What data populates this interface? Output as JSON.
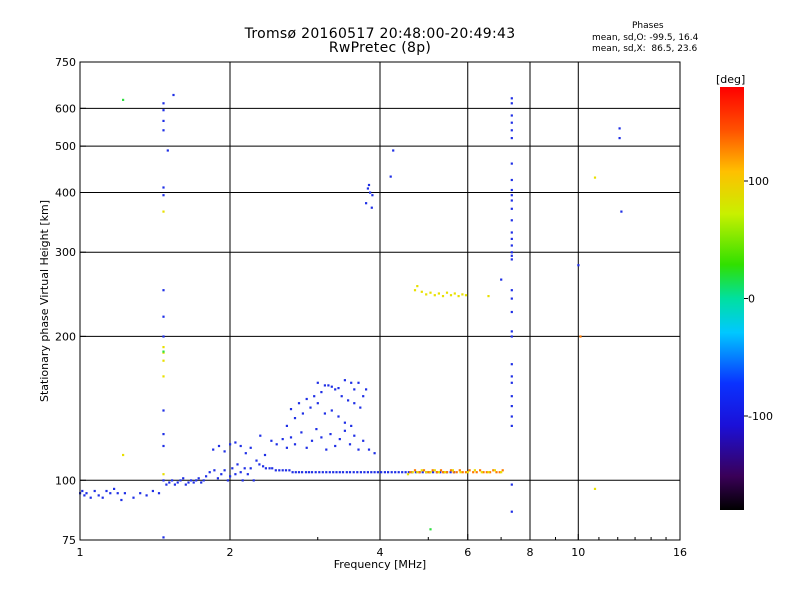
{
  "chart_data": {
    "type": "scatter",
    "title": "Tromsø 20160517 20:48:00-20:49:43",
    "subtitle": "RwPretec (8p)",
    "xlabel": "Frequency [MHz]",
    "ylabel": "Stationary phase Virtual Height [km]",
    "x_scale": "log",
    "y_scale": "log",
    "xlim": [
      1,
      16
    ],
    "ylim": [
      75,
      750
    ],
    "x_ticks": [
      1,
      2,
      4,
      6,
      8,
      10,
      16
    ],
    "y_ticks": [
      75,
      100,
      200,
      300,
      400,
      500,
      600,
      750
    ],
    "grid": true,
    "phase_stats": {
      "heading": "Phases",
      "o_line": "mean, sd,O: -99.5, 16.4",
      "x_line": "mean, sd,X:  86.5, 23.6"
    },
    "colorbar": {
      "label": "[deg]",
      "ticks": [
        100,
        0,
        -100
      ],
      "range": [
        -180,
        180
      ]
    },
    "series": [
      {
        "points": [
          [
            1.0,
            94
          ],
          [
            1.01,
            95
          ],
          [
            1.02,
            93
          ],
          [
            1.03,
            94
          ],
          [
            1.05,
            92
          ],
          [
            1.07,
            95
          ],
          [
            1.09,
            93
          ],
          [
            1.11,
            92
          ],
          [
            1.13,
            95
          ],
          [
            1.15,
            94
          ],
          [
            1.17,
            96
          ],
          [
            1.19,
            94
          ],
          [
            1.21,
            91
          ],
          [
            1.23,
            94
          ],
          [
            1.28,
            92
          ],
          [
            1.32,
            94
          ],
          [
            1.36,
            93
          ],
          [
            1.4,
            95
          ],
          [
            1.44,
            94
          ],
          [
            1.47,
            100
          ],
          [
            1.49,
            98
          ],
          [
            1.51,
            99
          ],
          [
            1.53,
            100
          ],
          [
            1.55,
            98
          ],
          [
            1.57,
            99
          ],
          [
            1.59,
            100
          ],
          [
            1.61,
            101
          ],
          [
            1.63,
            98
          ],
          [
            1.65,
            99
          ],
          [
            1.67,
            100
          ],
          [
            1.69,
            99
          ],
          [
            1.71,
            100
          ],
          [
            1.73,
            101
          ],
          [
            1.75,
            99
          ],
          [
            1.77,
            100
          ],
          [
            1.79,
            102
          ],
          [
            1.82,
            104
          ],
          [
            1.86,
            105
          ],
          [
            1.89,
            101
          ],
          [
            1.92,
            103
          ],
          [
            1.95,
            105
          ],
          [
            1.98,
            100
          ],
          [
            2.0,
            102
          ],
          [
            2.02,
            106
          ],
          [
            2.05,
            103
          ],
          [
            2.07,
            108
          ],
          [
            2.1,
            104
          ],
          [
            2.12,
            100
          ],
          [
            2.14,
            106
          ],
          [
            2.17,
            103
          ],
          [
            2.2,
            106
          ],
          [
            2.23,
            100
          ],
          [
            2.26,
            110
          ],
          [
            2.29,
            108
          ],
          [
            2.33,
            107
          ],
          [
            2.36,
            106
          ],
          [
            2.4,
            106
          ],
          [
            2.43,
            106
          ],
          [
            2.47,
            105
          ],
          [
            2.51,
            105
          ],
          [
            2.55,
            105
          ],
          [
            2.59,
            105
          ],
          [
            2.63,
            105
          ],
          [
            2.67,
            104
          ],
          [
            2.71,
            104
          ],
          [
            2.75,
            104
          ],
          [
            2.79,
            104
          ],
          [
            2.84,
            104
          ],
          [
            2.88,
            104
          ],
          [
            2.92,
            104
          ],
          [
            2.97,
            104
          ],
          [
            3.02,
            104
          ],
          [
            3.07,
            104
          ],
          [
            3.12,
            104
          ],
          [
            3.17,
            104
          ],
          [
            3.22,
            104
          ],
          [
            3.27,
            104
          ],
          [
            3.32,
            104
          ],
          [
            3.37,
            104
          ],
          [
            3.43,
            104
          ],
          [
            3.48,
            104
          ],
          [
            3.54,
            104
          ],
          [
            3.6,
            104
          ],
          [
            3.66,
            104
          ],
          [
            3.72,
            104
          ],
          [
            3.78,
            104
          ],
          [
            3.84,
            104
          ],
          [
            3.9,
            104
          ],
          [
            3.96,
            104
          ],
          [
            4.02,
            104
          ],
          [
            4.09,
            104
          ],
          [
            4.15,
            104
          ],
          [
            4.22,
            104
          ],
          [
            4.29,
            104
          ],
          [
            4.36,
            104
          ],
          [
            4.43,
            104
          ],
          [
            4.5,
            104
          ],
          [
            4.57,
            104
          ],
          [
            4.64,
            104
          ],
          [
            4.72,
            104
          ],
          [
            4.8,
            104
          ],
          [
            4.87,
            104
          ],
          [
            4.95,
            104
          ],
          [
            5.03,
            104
          ],
          [
            5.11,
            104
          ],
          [
            5.2,
            104
          ],
          [
            5.28,
            104
          ],
          [
            5.37,
            104
          ],
          [
            5.45,
            104
          ],
          [
            5.54,
            104
          ],
          [
            5.63,
            104
          ],
          [
            1.85,
            116
          ],
          [
            1.9,
            118
          ],
          [
            1.95,
            115
          ],
          [
            2.0,
            119
          ],
          [
            2.05,
            120
          ],
          [
            2.1,
            118
          ],
          [
            2.15,
            114
          ],
          [
            2.2,
            117
          ],
          [
            2.3,
            124
          ],
          [
            2.35,
            113
          ],
          [
            2.42,
            121
          ],
          [
            2.48,
            119
          ],
          [
            2.55,
            122
          ],
          [
            2.6,
            117
          ],
          [
            2.65,
            123
          ],
          [
            2.7,
            119
          ],
          [
            2.78,
            126
          ],
          [
            2.85,
            117
          ],
          [
            2.92,
            121
          ],
          [
            2.98,
            128
          ],
          [
            3.05,
            123
          ],
          [
            3.12,
            116
          ],
          [
            3.18,
            125
          ],
          [
            3.25,
            118
          ],
          [
            3.32,
            122
          ],
          [
            3.4,
            127
          ],
          [
            3.48,
            119
          ],
          [
            3.55,
            124
          ],
          [
            3.62,
            116
          ],
          [
            3.7,
            121
          ],
          [
            3.8,
            116
          ],
          [
            3.9,
            114
          ],
          [
            2.6,
            130
          ],
          [
            2.7,
            135
          ],
          [
            2.8,
            138
          ],
          [
            2.9,
            142
          ],
          [
            3.0,
            145
          ],
          [
            3.1,
            138
          ],
          [
            3.2,
            140
          ],
          [
            3.3,
            136
          ],
          [
            3.4,
            132
          ],
          [
            3.5,
            130
          ],
          [
            2.65,
            141
          ],
          [
            2.75,
            145
          ],
          [
            2.85,
            148
          ],
          [
            2.95,
            150
          ],
          [
            3.05,
            153
          ],
          [
            3.15,
            158
          ],
          [
            3.25,
            155
          ],
          [
            3.35,
            150
          ],
          [
            3.45,
            147
          ],
          [
            3.55,
            145
          ],
          [
            3.65,
            142
          ],
          [
            3.7,
            150
          ],
          [
            3.75,
            155
          ],
          [
            3.62,
            160
          ],
          [
            3.55,
            155
          ],
          [
            3.0,
            160
          ],
          [
            3.1,
            158
          ],
          [
            3.2,
            157
          ],
          [
            3.3,
            156
          ],
          [
            3.4,
            162
          ],
          [
            3.5,
            160
          ],
          [
            1.47,
            615
          ],
          [
            1.47,
            595
          ],
          [
            1.47,
            565
          ],
          [
            1.47,
            540
          ],
          [
            1.47,
            410
          ],
          [
            1.47,
            395
          ],
          [
            1.47,
            250
          ],
          [
            1.47,
            220
          ],
          [
            1.47,
            200
          ],
          [
            1.47,
            140
          ],
          [
            1.47,
            125
          ],
          [
            1.47,
            118
          ],
          [
            1.47,
            76
          ],
          [
            1.5,
            490
          ],
          [
            1.54,
            640
          ],
          [
            3.78,
            408
          ],
          [
            3.82,
            400
          ],
          [
            3.86,
            395
          ],
          [
            3.75,
            380
          ],
          [
            3.85,
            372
          ],
          [
            3.8,
            415
          ],
          [
            4.2,
            432
          ],
          [
            4.25,
            490
          ],
          [
            7.35,
            630
          ],
          [
            7.35,
            615
          ],
          [
            7.35,
            580
          ],
          [
            7.35,
            560
          ],
          [
            7.35,
            540
          ],
          [
            7.35,
            520
          ],
          [
            7.35,
            460
          ],
          [
            7.35,
            425
          ],
          [
            7.35,
            405
          ],
          [
            7.35,
            395
          ],
          [
            7.35,
            385
          ],
          [
            7.35,
            370
          ],
          [
            7.35,
            350
          ],
          [
            7.35,
            330
          ],
          [
            7.35,
            320
          ],
          [
            7.35,
            310
          ],
          [
            7.35,
            300
          ],
          [
            7.35,
            295
          ],
          [
            7.35,
            290
          ],
          [
            7.35,
            250
          ],
          [
            7.35,
            240
          ],
          [
            7.35,
            225
          ],
          [
            7.35,
            205
          ],
          [
            7.35,
            200
          ],
          [
            7.35,
            175
          ],
          [
            7.35,
            165
          ],
          [
            7.35,
            160
          ],
          [
            7.35,
            150
          ],
          [
            7.35,
            143
          ],
          [
            7.35,
            136
          ],
          [
            7.35,
            130
          ],
          [
            7.35,
            98
          ],
          [
            7.35,
            86
          ],
          [
            10.0,
            282
          ],
          [
            12.1,
            545
          ],
          [
            12.1,
            520
          ],
          [
            12.2,
            365
          ],
          [
            7.0,
            263
          ]
        ]
      },
      {
        "points": [
          [
            4.6,
            104
          ],
          [
            4.7,
            105
          ],
          [
            4.8,
            104
          ],
          [
            4.9,
            105
          ],
          [
            5.0,
            104
          ],
          [
            5.1,
            105
          ],
          [
            5.2,
            104
          ],
          [
            5.3,
            105
          ],
          [
            5.35,
            104
          ],
          [
            5.45,
            104
          ],
          [
            5.55,
            105
          ],
          [
            5.62,
            104
          ],
          [
            5.7,
            104
          ],
          [
            5.78,
            105
          ],
          [
            5.86,
            104
          ],
          [
            5.95,
            104
          ],
          [
            6.05,
            105
          ],
          [
            6.15,
            104
          ],
          [
            6.25,
            104
          ],
          [
            6.35,
            105
          ],
          [
            6.45,
            104
          ],
          [
            6.55,
            104
          ],
          [
            6.65,
            104
          ],
          [
            6.75,
            105
          ],
          [
            6.85,
            104
          ],
          [
            6.95,
            104
          ],
          [
            7.05,
            105
          ],
          [
            10.1,
            200
          ]
        ]
      },
      {
        "points": [
          [
            4.65,
            104
          ],
          [
            4.75,
            104
          ],
          [
            4.85,
            105
          ],
          [
            4.95,
            104
          ],
          [
            5.05,
            104
          ],
          [
            5.15,
            105
          ],
          [
            5.25,
            104
          ],
          [
            5.4,
            104
          ],
          [
            5.6,
            105
          ],
          [
            5.8,
            104
          ],
          [
            6.0,
            104
          ],
          [
            6.2,
            105
          ],
          [
            6.4,
            104
          ],
          [
            6.6,
            104
          ],
          [
            6.8,
            105
          ],
          [
            7.0,
            104
          ],
          [
            4.55,
            103
          ],
          [
            4.7,
            250
          ],
          [
            4.75,
            255
          ],
          [
            4.85,
            248
          ],
          [
            4.95,
            245
          ],
          [
            5.05,
            247
          ],
          [
            5.15,
            244
          ],
          [
            5.25,
            246
          ],
          [
            5.35,
            243
          ],
          [
            5.45,
            247
          ],
          [
            5.55,
            244
          ],
          [
            5.65,
            246
          ],
          [
            5.75,
            243
          ],
          [
            5.85,
            245
          ],
          [
            5.95,
            244
          ],
          [
            6.6,
            243
          ],
          [
            1.47,
            190
          ],
          [
            1.47,
            185
          ],
          [
            1.47,
            178
          ],
          [
            1.47,
            165
          ],
          [
            1.47,
            103
          ],
          [
            1.47,
            365
          ],
          [
            1.22,
            113
          ],
          [
            10.8,
            430
          ],
          [
            10.8,
            96
          ]
        ]
      },
      {
        "points": [
          [
            1.22,
            625
          ],
          [
            5.05,
            79
          ],
          [
            1.47,
            186
          ]
        ]
      }
    ]
  }
}
